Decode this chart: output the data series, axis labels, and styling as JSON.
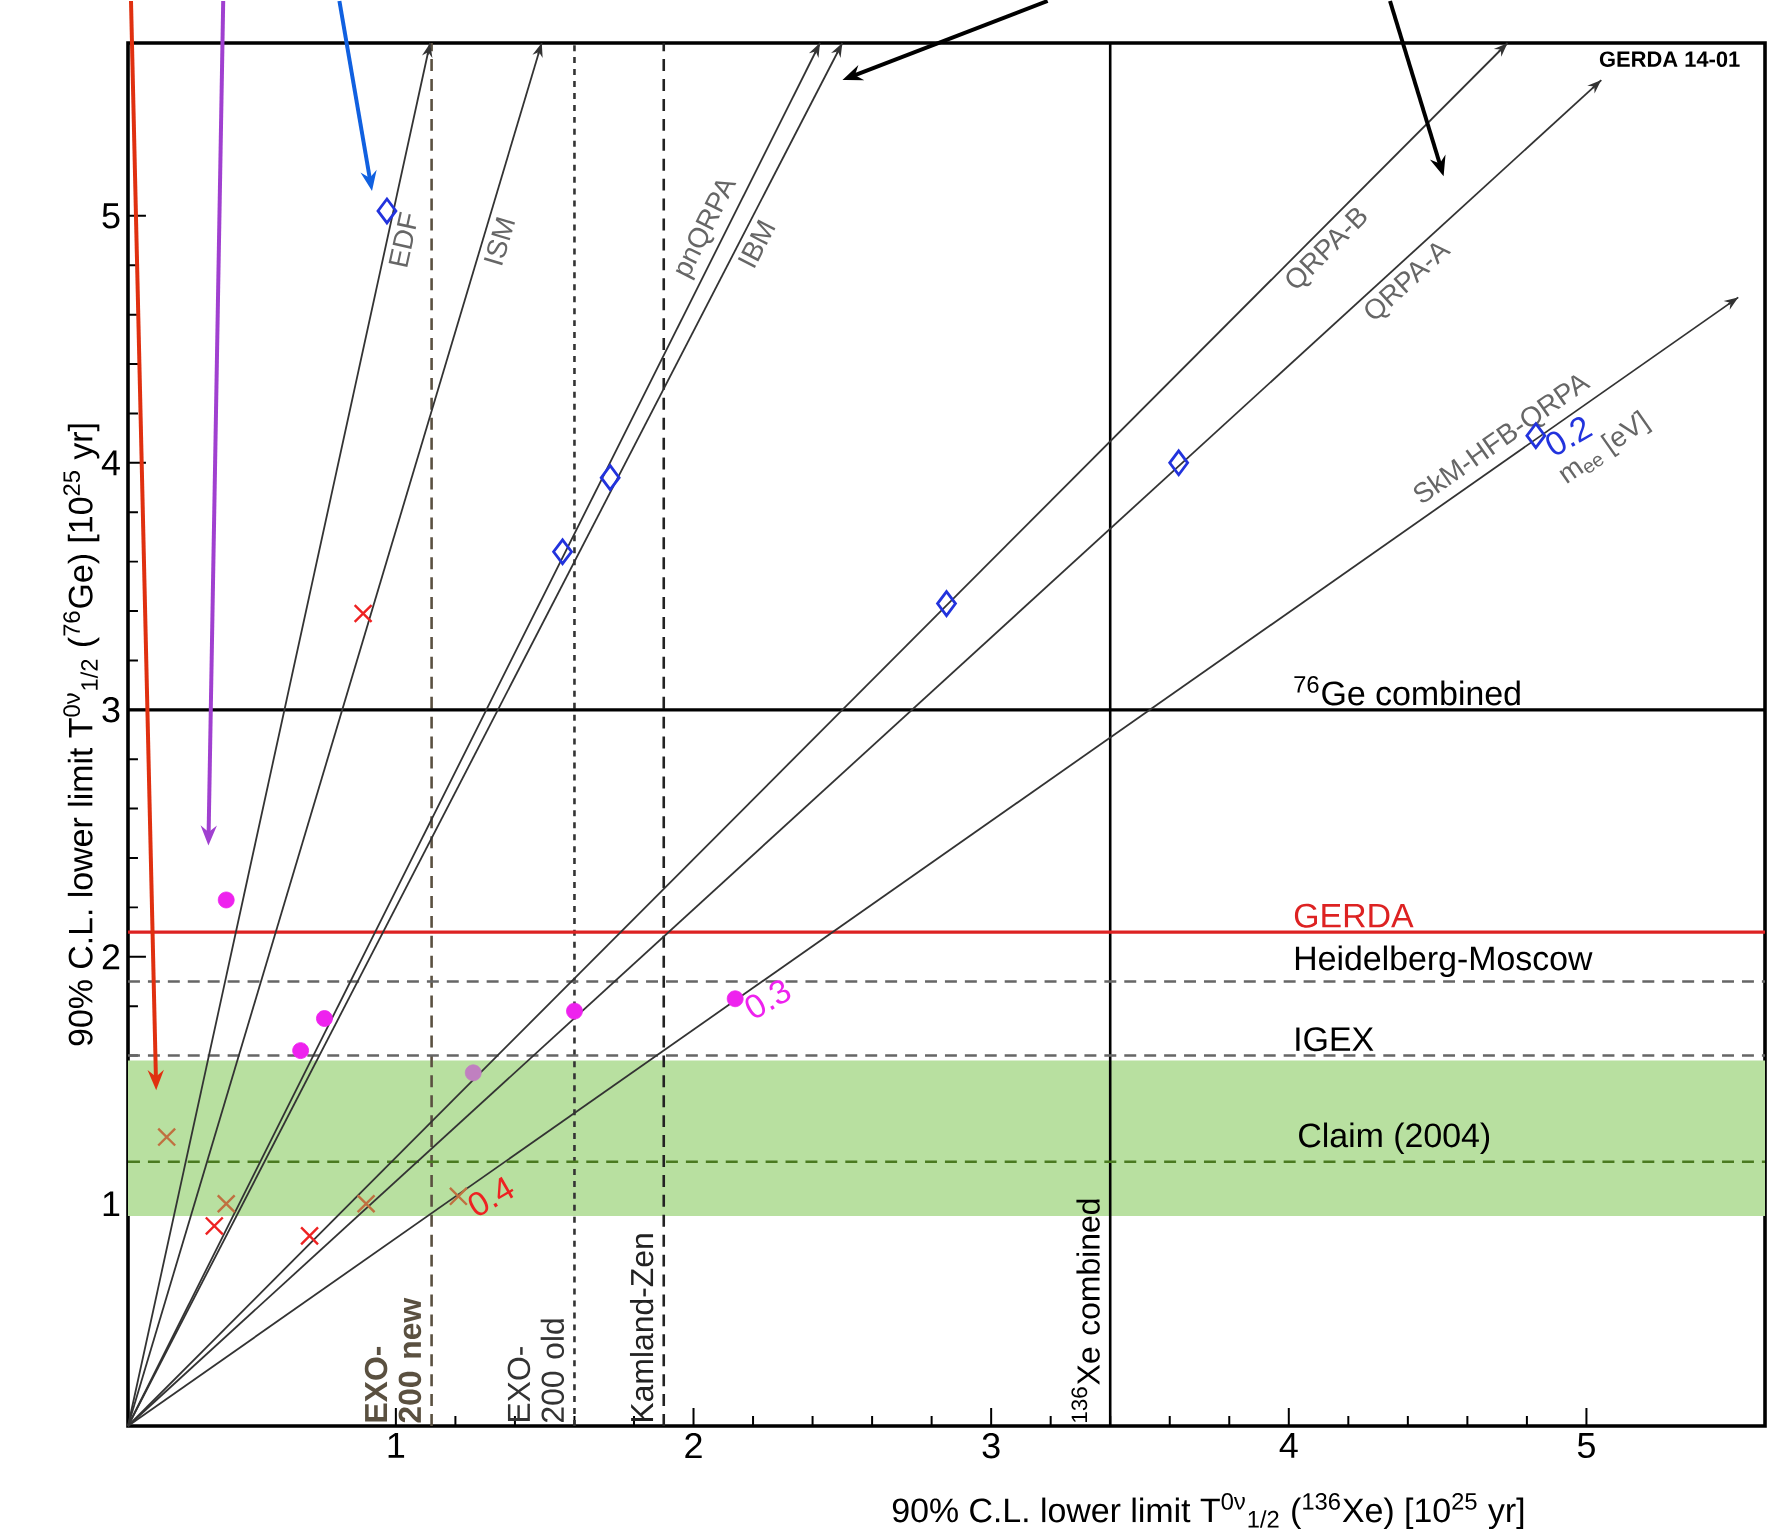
{
  "chart_data": {
    "type": "line",
    "xlabel": "90% C.L. lower limit T$^{0ν}$$_{1/2}$ ($^{136}$Xe)  [10$^{25}$ yr]",
    "ylabel": "90% C.L. lower limit T$^{0ν}$$_{1/2}$ ($^{76}$Ge)  [10$^{25}$ yr]",
    "xlim": [
      0.1,
      5.6
    ],
    "ylim": [
      0.1,
      5.7
    ],
    "xticks": [
      1,
      2,
      3,
      4,
      5
    ],
    "yticks": [
      1,
      2,
      3,
      4,
      5
    ],
    "series": [
      {
        "name": "EDF",
        "color": "#333333",
        "x": [
          0.1,
          1.115
        ],
        "values": [
          0.1,
          5.7
        ]
      },
      {
        "name": "ISM",
        "color": "#333333",
        "x": [
          0.1,
          1.49
        ],
        "values": [
          0.1,
          5.7
        ]
      },
      {
        "name": "pnQRPA",
        "color": "#333333",
        "x": [
          0.1,
          2.425
        ],
        "values": [
          0.1,
          5.7
        ]
      },
      {
        "name": "IBM",
        "color": "#333333",
        "x": [
          0.1,
          2.5
        ],
        "values": [
          0.1,
          5.7
        ]
      },
      {
        "name": "QRPA-B",
        "color": "#333333",
        "x": [
          0.1,
          4.735
        ],
        "values": [
          0.1,
          5.7
        ]
      },
      {
        "name": "QRPA-A",
        "color": "#333333",
        "x": [
          0.1,
          5.05
        ],
        "values": [
          0.1,
          5.55
        ]
      },
      {
        "name": "SkM-HFB-QRPA",
        "color": "#333333",
        "x": [
          0.1,
          5.51
        ],
        "values": [
          0.1,
          4.67
        ]
      },
      {
        "type": "scatter",
        "marker": "diamond",
        "color": "#2233dd",
        "x": [
          0.97,
          1.72,
          1.56,
          2.85,
          3.63,
          4.83
        ],
        "values": [
          5.02,
          3.94,
          3.64,
          3.43,
          4.0,
          4.11
        ]
      },
      {
        "type": "scatter",
        "marker": "circle",
        "colors": [
          "#ee22ee",
          "#ee22ee",
          "#ee22ee",
          "#c080c0",
          "#ee22ee",
          "#ee22ee"
        ],
        "x": [
          0.43,
          0.76,
          0.68,
          1.26,
          1.6,
          2.14
        ],
        "values": [
          2.23,
          1.75,
          1.62,
          1.53,
          1.78,
          1.83
        ]
      },
      {
        "type": "scatter",
        "marker": "cross",
        "colors": [
          "#ee2222",
          "#ee2222",
          "#ee2222",
          "#c07040",
          "#c07040",
          "#c07040",
          "#c07040"
        ],
        "x": [
          0.89,
          0.39,
          0.71,
          0.23,
          0.43,
          0.9,
          1.21
        ],
        "values": [
          3.39,
          0.91,
          0.87,
          1.27,
          1.0,
          1.0,
          1.03
        ]
      }
    ],
    "ref_lines": [
      {
        "axis": "x",
        "value": 1.12,
        "label": "EXO-200 new",
        "color": "#5a5040",
        "line_style": "dashed"
      },
      {
        "axis": "x",
        "value": 1.6,
        "label": "EXO-200 old",
        "color": "#333333",
        "line_style": "dotted"
      },
      {
        "axis": "x",
        "value": 1.9,
        "label": "Kamland-Zen",
        "color": "#222222",
        "line_style": "dashed"
      },
      {
        "axis": "x",
        "value": 3.4,
        "label": "$^{136}$Xe combined",
        "color": "#000000",
        "line_style": "solid"
      },
      {
        "axis": "y",
        "value": 3.0,
        "label": "$^{76}$Ge combined",
        "color": "#000000",
        "line_style": "solid"
      },
      {
        "axis": "y",
        "value": 2.1,
        "label": "GERDA",
        "color": "#dd2222",
        "line_style": "solid"
      },
      {
        "axis": "y",
        "value": 1.9,
        "label": "Heidelberg-Moscow",
        "color": "#666666",
        "line_style": "dashed"
      },
      {
        "axis": "y",
        "value": 1.6,
        "label": "IGEX",
        "color": "#666666",
        "line_style": "dashed"
      },
      {
        "axis": "y",
        "value": 1.17,
        "color": "#4a7a20",
        "line_style": "dashed"
      }
    ],
    "bands": [
      {
        "axis": "y",
        "from": 0.95,
        "to": 1.58,
        "label": "Claim (2004)",
        "color": "#b8e0a0"
      }
    ],
    "annotations": [
      {
        "text": "0.2",
        "x": 4.83,
        "y": 4.11
      },
      {
        "text": "0.3",
        "x": 2.14,
        "y": 1.83
      },
      {
        "text": "0.4",
        "x": 1.21,
        "y": 1.03
      },
      "m$_{ee}$ [eV]",
      "GERDA 14-01"
    ]
  }
}
